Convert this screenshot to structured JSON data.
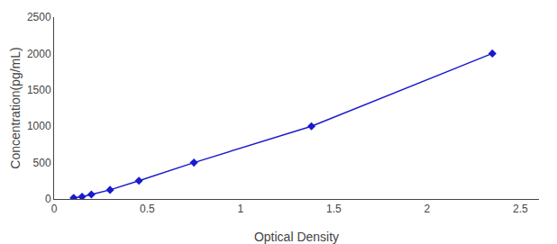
{
  "chart_data": {
    "type": "line",
    "x": [
      0.105,
      0.15,
      0.2,
      0.3,
      0.455,
      0.75,
      1.38,
      2.35
    ],
    "values": [
      15.6,
      31.25,
      62.5,
      125,
      250,
      500,
      1000,
      2000
    ],
    "color": "#1a1acd",
    "marker": "diamond",
    "xlabel": "Optical Density",
    "ylabel": "Concentration(pg/mL)",
    "xlim": [
      0.0,
      2.6
    ],
    "ylim": [
      0,
      2500
    ],
    "xticks": [
      0,
      0.5,
      1,
      1.5,
      2,
      2.5
    ],
    "yticks": [
      0,
      500,
      1000,
      1500,
      2000,
      2500
    ],
    "grid": false
  }
}
